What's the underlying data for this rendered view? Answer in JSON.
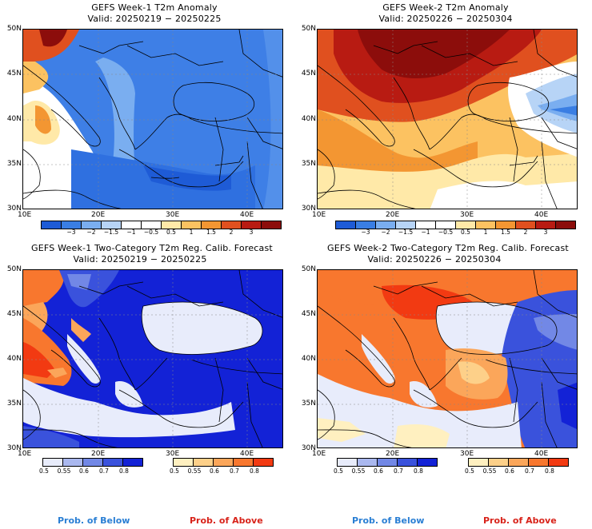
{
  "panels": [
    {
      "title": "GEFS Week-1 T2m Anomaly",
      "valid": "Valid: 20250219 − 20250225"
    },
    {
      "title": "GEFS Week-2 T2m Anomaly",
      "valid": "Valid: 20250226 − 20250304"
    },
    {
      "title": "GEFS Week-1 Two-Category T2m Reg. Calib. Forecast",
      "valid": "Valid: 20250219 − 20250225"
    },
    {
      "title": "GEFS Week-2 Two-Category T2m Reg. Calib. Forecast",
      "valid": "Valid: 20250226 − 20250304"
    }
  ],
  "axes": {
    "lat_labels": [
      "50N",
      "45N",
      "40N",
      "35N",
      "30N"
    ],
    "lon_labels": [
      "10E",
      "20E",
      "30E",
      "40E"
    ]
  },
  "anomaly_colorbar": {
    "colors": [
      "#1e5bd6",
      "#3a7ee3",
      "#7aaef0",
      "#b7d4f6",
      "#ffffff",
      "#ffffff",
      "#ffe9a8",
      "#fcc261",
      "#f39632",
      "#e0501f",
      "#b81b12",
      "#8c0d0b"
    ],
    "labels": [
      "−3",
      "−2",
      "−1.5",
      "−1",
      "−0.5",
      "0.5",
      "1",
      "1.5",
      "2",
      "3"
    ]
  },
  "prob_below_colorbar": {
    "colors": [
      "#e8ecfb",
      "#aab8ef",
      "#7288e6",
      "#3a52dc",
      "#1322d6"
    ],
    "labels": [
      "0.5",
      "0.55",
      "0.6",
      "0.7",
      "0.8"
    ],
    "caption": "Prob. of Below",
    "caption_color": "#2a7fd4"
  },
  "prob_above_colorbar": {
    "colors": [
      "#fff0c0",
      "#fdd089",
      "#fba65a",
      "#f8772e",
      "#f23a12"
    ],
    "labels": [
      "0.5",
      "0.55",
      "0.6",
      "0.7",
      "0.8"
    ],
    "caption": "Prob. of Above",
    "caption_color": "#d8231a"
  }
}
